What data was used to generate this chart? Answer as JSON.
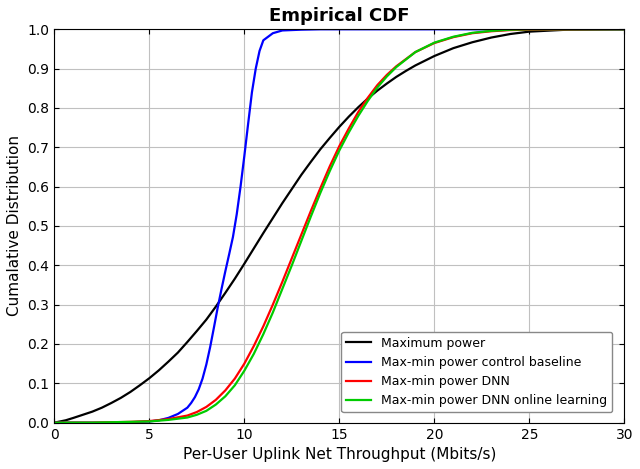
{
  "title": "Empirical CDF",
  "xlabel": "Per-User Uplink Net Throughput (Mbits/s)",
  "ylabel": "Cumalative Distribution",
  "xlim": [
    0,
    30
  ],
  "ylim": [
    0,
    1.0
  ],
  "xticks": [
    0,
    5,
    10,
    15,
    20,
    25,
    30
  ],
  "yticks": [
    0,
    0.1,
    0.2,
    0.3,
    0.4,
    0.5,
    0.6,
    0.7,
    0.8,
    0.9,
    1.0
  ],
  "legend_labels": [
    "Maximum power",
    "Max-min power control baseline",
    "Max-min power DNN",
    "Max-min power DNN online learning"
  ],
  "colors": [
    "#000000",
    "#0000ff",
    "#ff0000",
    "#00cc00"
  ],
  "linewidth": 1.6,
  "background_color": "#ffffff",
  "grid_color": "#c0c0c0",
  "curves": {
    "max_power": {
      "x": [
        0,
        0.3,
        0.6,
        1.0,
        1.5,
        2.0,
        2.5,
        3.0,
        3.5,
        4.0,
        4.5,
        5.0,
        5.5,
        6.0,
        6.5,
        7.0,
        7.5,
        8.0,
        8.5,
        9.0,
        9.5,
        10.0,
        10.5,
        11.0,
        11.5,
        12.0,
        12.5,
        13.0,
        13.5,
        14.0,
        14.5,
        15.0,
        15.5,
        16.0,
        16.5,
        17.0,
        17.5,
        18.0,
        18.5,
        19.0,
        19.5,
        20.0,
        21.0,
        22.0,
        23.0,
        24.0,
        25.0,
        27.0,
        30.0
      ],
      "y": [
        0,
        0.003,
        0.006,
        0.012,
        0.02,
        0.028,
        0.038,
        0.05,
        0.063,
        0.078,
        0.095,
        0.113,
        0.133,
        0.155,
        0.178,
        0.205,
        0.233,
        0.262,
        0.295,
        0.33,
        0.366,
        0.404,
        0.443,
        0.482,
        0.52,
        0.558,
        0.594,
        0.63,
        0.663,
        0.695,
        0.724,
        0.752,
        0.778,
        0.802,
        0.824,
        0.844,
        0.862,
        0.879,
        0.894,
        0.908,
        0.92,
        0.932,
        0.952,
        0.967,
        0.979,
        0.988,
        0.994,
        0.999,
        1.0
      ]
    },
    "max_min_baseline": {
      "x": [
        0,
        1.0,
        2.0,
        3.0,
        4.0,
        5.0,
        5.5,
        6.0,
        6.5,
        7.0,
        7.2,
        7.4,
        7.6,
        7.8,
        8.0,
        8.2,
        8.4,
        8.6,
        8.8,
        9.0,
        9.2,
        9.4,
        9.6,
        9.8,
        10.0,
        10.2,
        10.4,
        10.6,
        10.8,
        11.0,
        11.5,
        12.0,
        13.0,
        14.0,
        15.0,
        16.0,
        20.0,
        25.0,
        30.0
      ],
      "y": [
        0,
        0.0,
        0.0,
        0.0,
        0.001,
        0.003,
        0.006,
        0.012,
        0.022,
        0.038,
        0.05,
        0.065,
        0.085,
        0.112,
        0.148,
        0.192,
        0.242,
        0.293,
        0.34,
        0.385,
        0.428,
        0.472,
        0.53,
        0.6,
        0.678,
        0.76,
        0.84,
        0.9,
        0.945,
        0.972,
        0.99,
        0.997,
        0.999,
        1.0,
        1.0,
        1.0,
        1.0,
        1.0,
        1.0
      ]
    },
    "max_min_dnn": {
      "x": [
        0,
        1.0,
        2.0,
        3.0,
        4.0,
        5.0,
        6.0,
        7.0,
        7.5,
        8.0,
        8.5,
        9.0,
        9.5,
        10.0,
        10.5,
        11.0,
        11.5,
        12.0,
        12.5,
        13.0,
        13.5,
        14.0,
        14.5,
        15.0,
        15.5,
        16.0,
        16.5,
        17.0,
        17.5,
        18.0,
        19.0,
        20.0,
        21.0,
        22.0,
        23.0,
        24.0,
        25.0,
        30.0
      ],
      "y": [
        0,
        0.0,
        0.0,
        0.001,
        0.002,
        0.004,
        0.009,
        0.018,
        0.027,
        0.04,
        0.058,
        0.082,
        0.112,
        0.15,
        0.195,
        0.245,
        0.3,
        0.358,
        0.418,
        0.478,
        0.538,
        0.596,
        0.652,
        0.703,
        0.748,
        0.79,
        0.826,
        0.858,
        0.884,
        0.906,
        0.942,
        0.965,
        0.98,
        0.99,
        0.995,
        0.998,
        0.999,
        1.0
      ]
    },
    "max_min_dnn_online": {
      "x": [
        0,
        1.0,
        2.0,
        3.0,
        4.0,
        5.0,
        6.0,
        7.0,
        7.5,
        8.0,
        8.5,
        9.0,
        9.5,
        10.0,
        10.5,
        11.0,
        11.5,
        12.0,
        12.5,
        13.0,
        13.5,
        14.0,
        14.5,
        15.0,
        15.5,
        16.0,
        16.5,
        17.0,
        17.5,
        18.0,
        19.0,
        20.0,
        21.0,
        22.0,
        23.0,
        24.0,
        25.0,
        30.0
      ],
      "y": [
        0,
        0.0,
        0.0,
        0.001,
        0.002,
        0.003,
        0.007,
        0.013,
        0.02,
        0.03,
        0.046,
        0.067,
        0.095,
        0.132,
        0.175,
        0.225,
        0.28,
        0.34,
        0.4,
        0.462,
        0.524,
        0.584,
        0.64,
        0.692,
        0.738,
        0.78,
        0.818,
        0.852,
        0.88,
        0.904,
        0.942,
        0.966,
        0.981,
        0.991,
        0.996,
        0.999,
        1.0,
        1.0
      ]
    }
  }
}
